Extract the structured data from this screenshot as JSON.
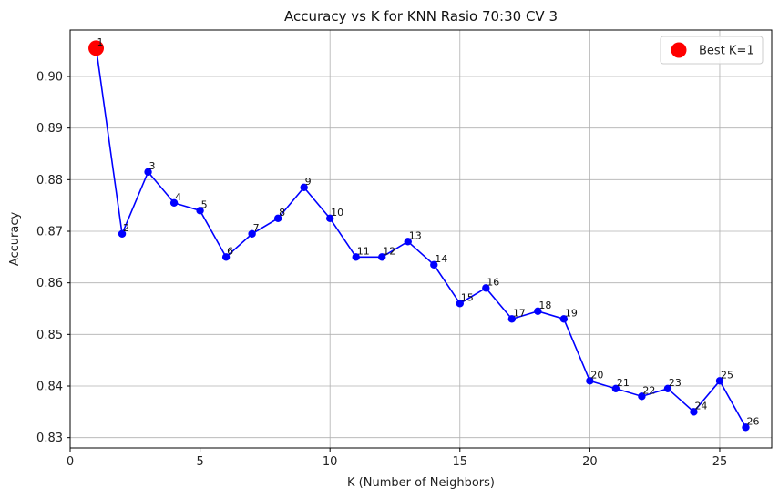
{
  "chart_data": {
    "type": "line",
    "title": "Accuracy vs K for KNN Rasio 70:30 CV 3",
    "xlabel": "K (Number of Neighbors)",
    "ylabel": "Accuracy",
    "xlim": [
      0,
      27
    ],
    "ylim": [
      0.828,
      0.909
    ],
    "xticks": [
      0,
      5,
      10,
      15,
      20,
      25
    ],
    "yticks": [
      0.83,
      0.84,
      0.85,
      0.86,
      0.87,
      0.88,
      0.89,
      0.9
    ],
    "ytick_labels": [
      "0.83",
      "0.84",
      "0.85",
      "0.86",
      "0.87",
      "0.88",
      "0.89",
      "0.90"
    ],
    "grid": true,
    "legend_position": "top-right",
    "series": [
      {
        "color": "#0000ff",
        "x": [
          1,
          2,
          3,
          4,
          5,
          6,
          7,
          8,
          9,
          10,
          11,
          12,
          13,
          14,
          15,
          16,
          17,
          18,
          19,
          20,
          21,
          22,
          23,
          24,
          25,
          26
        ],
        "values": [
          0.9055,
          0.8695,
          0.8815,
          0.8755,
          0.874,
          0.865,
          0.8695,
          0.8725,
          0.8785,
          0.8725,
          0.865,
          0.865,
          0.868,
          0.8635,
          0.856,
          0.859,
          0.853,
          0.8545,
          0.853,
          0.841,
          0.8395,
          0.838,
          0.8395,
          0.835,
          0.841,
          0.832
        ],
        "point_labels": [
          "1",
          "2",
          "3",
          "4",
          "5",
          "6",
          "7",
          "8",
          "9",
          "10",
          "11",
          "12",
          "13",
          "14",
          "15",
          "16",
          "17",
          "18",
          "19",
          "20",
          "21",
          "22",
          "23",
          "24",
          "25",
          "26"
        ]
      }
    ],
    "highlight": {
      "label": "Best K=1",
      "x": 1,
      "y": 0.9055,
      "color": "#ff0000"
    }
  }
}
